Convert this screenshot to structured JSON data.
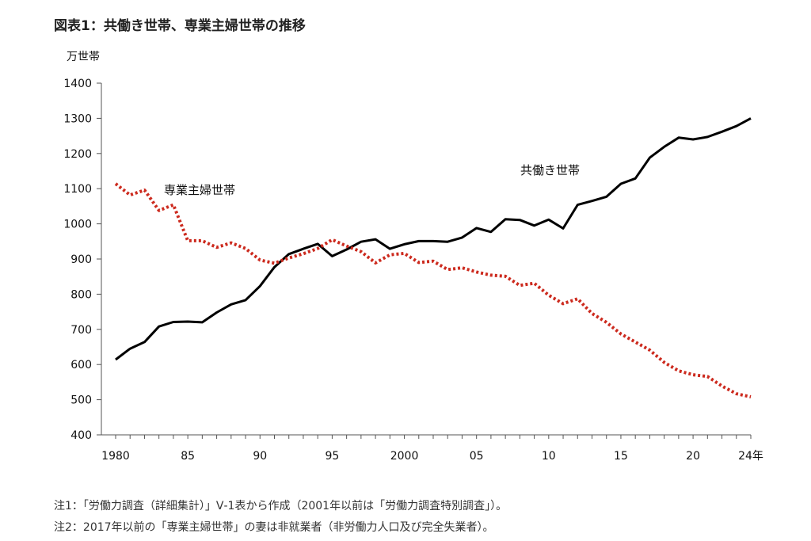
{
  "chart_data": {
    "type": "line",
    "title": "図表1：共働き世帯、専業主婦世帯の推移",
    "ylabel": "万世帯",
    "xlabel": "",
    "ylim": [
      400,
      1400
    ],
    "xlim": [
      1980,
      2024
    ],
    "yticks": [
      "400",
      "500",
      "600",
      "700",
      "800",
      "900",
      "1000",
      "1100",
      "1200",
      "1300",
      "1400"
    ],
    "xticks": [
      {
        "year": 1980,
        "label": "1980"
      },
      {
        "year": 1985,
        "label": "85"
      },
      {
        "year": 1990,
        "label": "90"
      },
      {
        "year": 1995,
        "label": "95"
      },
      {
        "year": 2000,
        "label": "2000"
      },
      {
        "year": 2005,
        "label": "05"
      },
      {
        "year": 2010,
        "label": "10"
      },
      {
        "year": 2015,
        "label": "15"
      },
      {
        "year": 2020,
        "label": "20"
      },
      {
        "year": 2024,
        "label": "24年"
      }
    ],
    "grid": false,
    "legend": "none (direct labels)",
    "x": [
      1980,
      1981,
      1982,
      1983,
      1984,
      1985,
      1986,
      1987,
      1988,
      1989,
      1990,
      1991,
      1992,
      1993,
      1994,
      1995,
      1996,
      1997,
      1998,
      1999,
      2000,
      2001,
      2002,
      2003,
      2004,
      2005,
      2006,
      2007,
      2008,
      2009,
      2010,
      2011,
      2012,
      2013,
      2014,
      2015,
      2016,
      2017,
      2018,
      2019,
      2020,
      2021,
      2022,
      2023,
      2024
    ],
    "series": [
      {
        "name": "共働き世帯",
        "color": "#000000",
        "style": "solid",
        "values": [
          614,
          645,
          664,
          708,
          721,
          722,
          720,
          748,
          771,
          783,
          823,
          877,
          914,
          929,
          943,
          908,
          927,
          949,
          956,
          929,
          942,
          951,
          951,
          949,
          961,
          988,
          977,
          1013,
          1011,
          995,
          1012,
          987,
          1054,
          1065,
          1077,
          1114,
          1129,
          1188,
          1219,
          1245,
          1240,
          1247,
          1262,
          1278,
          1300
        ]
      },
      {
        "name": "専業主婦世帯",
        "color": "#cc2a1e",
        "style": "dotted",
        "values": [
          1114,
          1082,
          1096,
          1038,
          1054,
          952,
          952,
          933,
          946,
          930,
          897,
          888,
          903,
          915,
          930,
          955,
          937,
          921,
          889,
          912,
          916,
          890,
          894,
          870,
          875,
          863,
          854,
          851,
          825,
          831,
          797,
          773,
          787,
          745,
          720,
          687,
          664,
          641,
          606,
          582,
          571,
          566,
          539,
          517,
          508
        ]
      }
    ],
    "annotations": [
      {
        "text": "専業主婦世帯",
        "series": 1
      },
      {
        "text": "共働き世帯",
        "series": 0
      }
    ]
  },
  "notes": [
    "注1：「労働力調査（詳細集計）」Ⅴ-1表から作成（2001年以前は「労働力調査特別調査」）。",
    "注2：2017年以前の「専業主婦世帯」の妻は非就業者（非労働力人口及び完全失業者）。"
  ]
}
